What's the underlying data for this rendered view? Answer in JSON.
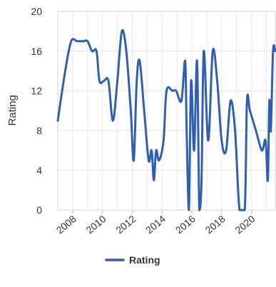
{
  "chart_data": {
    "type": "line",
    "ylabel": "Rating",
    "xlabel": "",
    "ylim": [
      0,
      20
    ],
    "y_ticks": [
      0,
      4,
      8,
      12,
      16,
      20
    ],
    "xlim": [
      2007.0,
      2021.6
    ],
    "x_ticks": [
      2008,
      2010,
      2012,
      2014,
      2016,
      2018,
      2020
    ],
    "x_tick_labels": [
      "2008",
      "2010",
      "2012",
      "2014",
      "2016",
      "2018",
      "2020"
    ],
    "grid": true,
    "legend_position": "bottom",
    "series": [
      {
        "name": "Rating",
        "color": "#2f5fb3",
        "x": [
          2007.0,
          2007.5,
          2007.9,
          2008.3,
          2008.7,
          2009.0,
          2009.3,
          2009.6,
          2009.8,
          2010.1,
          2010.4,
          2010.7,
          2011.0,
          2011.3,
          2011.6,
          2011.9,
          2012.1,
          2012.3,
          2012.5,
          2012.8,
          2013.1,
          2013.3,
          2013.45,
          2013.6,
          2013.8,
          2014.1,
          2014.3,
          2014.7,
          2014.95,
          2015.3,
          2015.55,
          2015.65,
          2015.8,
          2015.95,
          2016.15,
          2016.35,
          2016.5,
          2016.65,
          2016.8,
          2017.1,
          2017.4,
          2017.7,
          2018.0,
          2018.3,
          2018.6,
          2018.9,
          2019.2,
          2019.55,
          2019.7,
          2019.9,
          2020.3,
          2020.7,
          2020.95,
          2021.1,
          2021.2,
          2021.3,
          2021.45,
          2021.6
        ],
        "values": [
          9,
          14,
          17,
          17,
          17,
          17,
          16,
          16,
          13,
          13,
          13,
          9,
          13,
          18,
          16,
          10,
          5,
          13,
          15,
          10,
          5,
          6,
          3,
          6,
          5,
          7,
          12,
          12,
          12,
          11,
          15,
          8,
          0,
          13,
          6,
          15,
          0,
          3,
          16,
          7,
          16,
          13,
          7,
          6,
          11,
          8,
          0,
          0,
          11,
          10,
          8,
          6,
          7,
          3,
          11,
          8,
          16,
          16
        ]
      }
    ]
  }
}
